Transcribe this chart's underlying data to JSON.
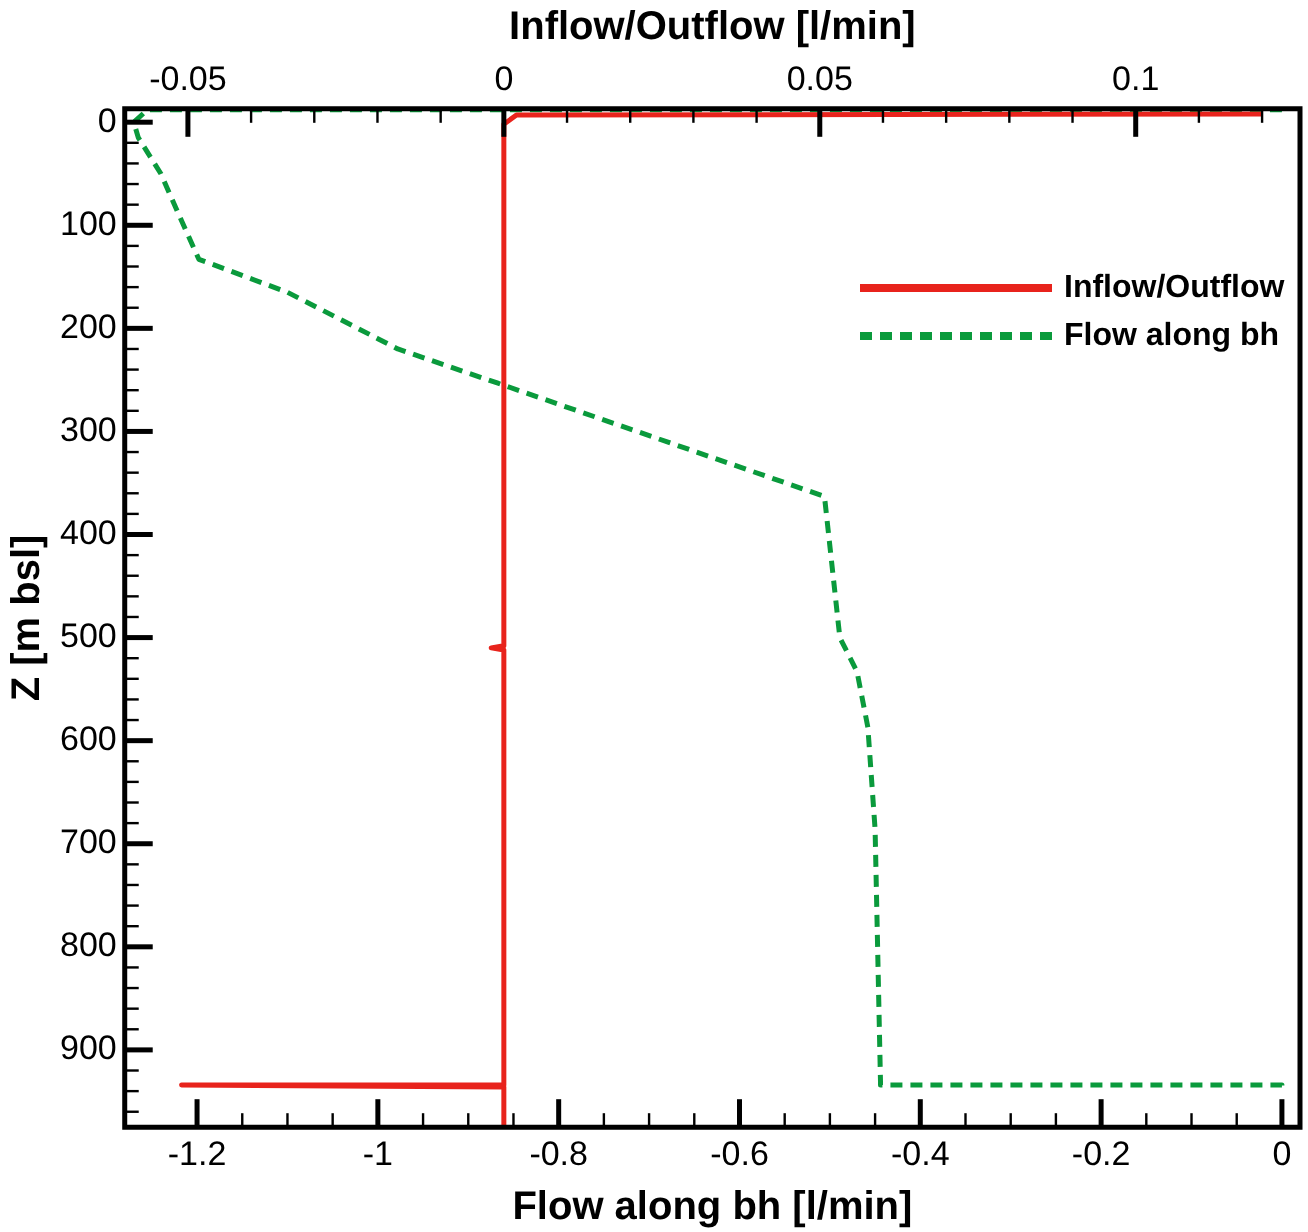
{
  "chart_data": {
    "type": "line",
    "xlabel": "Flow along bh [l/min]",
    "x2label": "Inflow/Outflow [l/min]",
    "ylabel": "Z [m bsl]",
    "xlim": [
      -1.28,
      0.02
    ],
    "xticks": [
      -1.2,
      {
        "value": -1.15,
        "label": null
      },
      {
        "value": -1.1,
        "label": null
      },
      {
        "value": -1.05,
        "label": null
      },
      -1,
      {
        "value": -0.95,
        "label": null
      },
      {
        "value": -0.9,
        "label": null
      },
      {
        "value": -0.85,
        "label": null
      },
      -0.8,
      {
        "value": -0.75,
        "label": null
      },
      {
        "value": -0.7,
        "label": null
      },
      {
        "value": -0.65,
        "label": null
      },
      -0.6,
      {
        "value": -0.55,
        "label": null
      },
      {
        "value": -0.5,
        "label": null
      },
      {
        "value": -0.45,
        "label": null
      },
      -0.4,
      {
        "value": -0.35,
        "label": null
      },
      {
        "value": -0.3,
        "label": null
      },
      {
        "value": -0.25,
        "label": null
      },
      -0.2,
      {
        "value": -0.15,
        "label": null
      },
      {
        "value": -0.1,
        "label": null
      },
      {
        "value": -0.05,
        "label": null
      },
      0
    ],
    "x2lim": [
      -0.06,
      0.126
    ],
    "x2ticks": [
      -0.05,
      {
        "value": -0.04,
        "label": null
      },
      {
        "value": -0.03,
        "label": null
      },
      {
        "value": -0.02,
        "label": null
      },
      {
        "value": -0.01,
        "label": null
      },
      0,
      {
        "value": 0.01,
        "label": null
      },
      {
        "value": 0.02,
        "label": null
      },
      {
        "value": 0.03,
        "label": null
      },
      {
        "value": 0.04,
        "label": null
      },
      0.05,
      {
        "value": 0.06,
        "label": null
      },
      {
        "value": 0.07,
        "label": null
      },
      {
        "value": 0.08,
        "label": null
      },
      {
        "value": 0.09,
        "label": null
      },
      0.1,
      {
        "value": 0.11,
        "label": null
      },
      {
        "value": 0.12,
        "label": null
      }
    ],
    "ylim": [
      975,
      -13
    ],
    "yticks": [
      0,
      {
        "value": 20,
        "label": null
      },
      {
        "value": 40,
        "label": null
      },
      {
        "value": 60,
        "label": null
      },
      {
        "value": 80,
        "label": null
      },
      100,
      {
        "value": 120,
        "label": null
      },
      {
        "value": 140,
        "label": null
      },
      {
        "value": 160,
        "label": null
      },
      {
        "value": 180,
        "label": null
      },
      200,
      {
        "value": 220,
        "label": null
      },
      {
        "value": 240,
        "label": null
      },
      {
        "value": 260,
        "label": null
      },
      {
        "value": 280,
        "label": null
      },
      300,
      {
        "value": 320,
        "label": null
      },
      {
        "value": 340,
        "label": null
      },
      {
        "value": 360,
        "label": null
      },
      {
        "value": 380,
        "label": null
      },
      400,
      {
        "value": 420,
        "label": null
      },
      {
        "value": 440,
        "label": null
      },
      {
        "value": 460,
        "label": null
      },
      {
        "value": 480,
        "label": null
      },
      500,
      {
        "value": 520,
        "label": null
      },
      {
        "value": 540,
        "label": null
      },
      {
        "value": 560,
        "label": null
      },
      {
        "value": 580,
        "label": null
      },
      600,
      {
        "value": 620,
        "label": null
      },
      {
        "value": 640,
        "label": null
      },
      {
        "value": 660,
        "label": null
      },
      {
        "value": 680,
        "label": null
      },
      700,
      {
        "value": 720,
        "label": null
      },
      {
        "value": 740,
        "label": null
      },
      {
        "value": 760,
        "label": null
      },
      {
        "value": 780,
        "label": null
      },
      800,
      {
        "value": 820,
        "label": null
      },
      {
        "value": 840,
        "label": null
      },
      {
        "value": 860,
        "label": null
      },
      {
        "value": 880,
        "label": null
      },
      900,
      {
        "value": 920,
        "label": null
      },
      {
        "value": 940,
        "label": null
      },
      {
        "value": 960,
        "label": null
      }
    ],
    "legend": "top right",
    "grid": false,
    "marker": "none",
    "series": [
      {
        "name": "Inflow/Outflow",
        "color": "#e8231c",
        "axis": "x2",
        "line_style": "solid",
        "x": [
          0.12,
          0.002,
          0,
          0,
          -0.002,
          0,
          0,
          -0.051,
          0,
          0
        ],
        "values": [
          -8,
          -7,
          2,
          508,
          510,
          512,
          934,
          934,
          936,
          975
        ]
      },
      {
        "name": "Flow along bh",
        "color": "#0a9a3c",
        "line_style": "dashed",
        "x": [
          0,
          -1.255,
          -1.27,
          -1.265,
          -1.24,
          -1.22,
          -1.198,
          -1.1,
          -1.0,
          -0.978,
          -0.868,
          -0.506,
          -0.489,
          -0.47,
          -0.458,
          -0.45,
          -0.444,
          -0.444,
          0,
          0
        ],
        "values": [
          -12,
          -12,
          0,
          15,
          50,
          90,
          133,
          165,
          210,
          220,
          253,
          363,
          500,
          533,
          587,
          686,
          932,
          934,
          934,
          940
        ]
      }
    ]
  }
}
